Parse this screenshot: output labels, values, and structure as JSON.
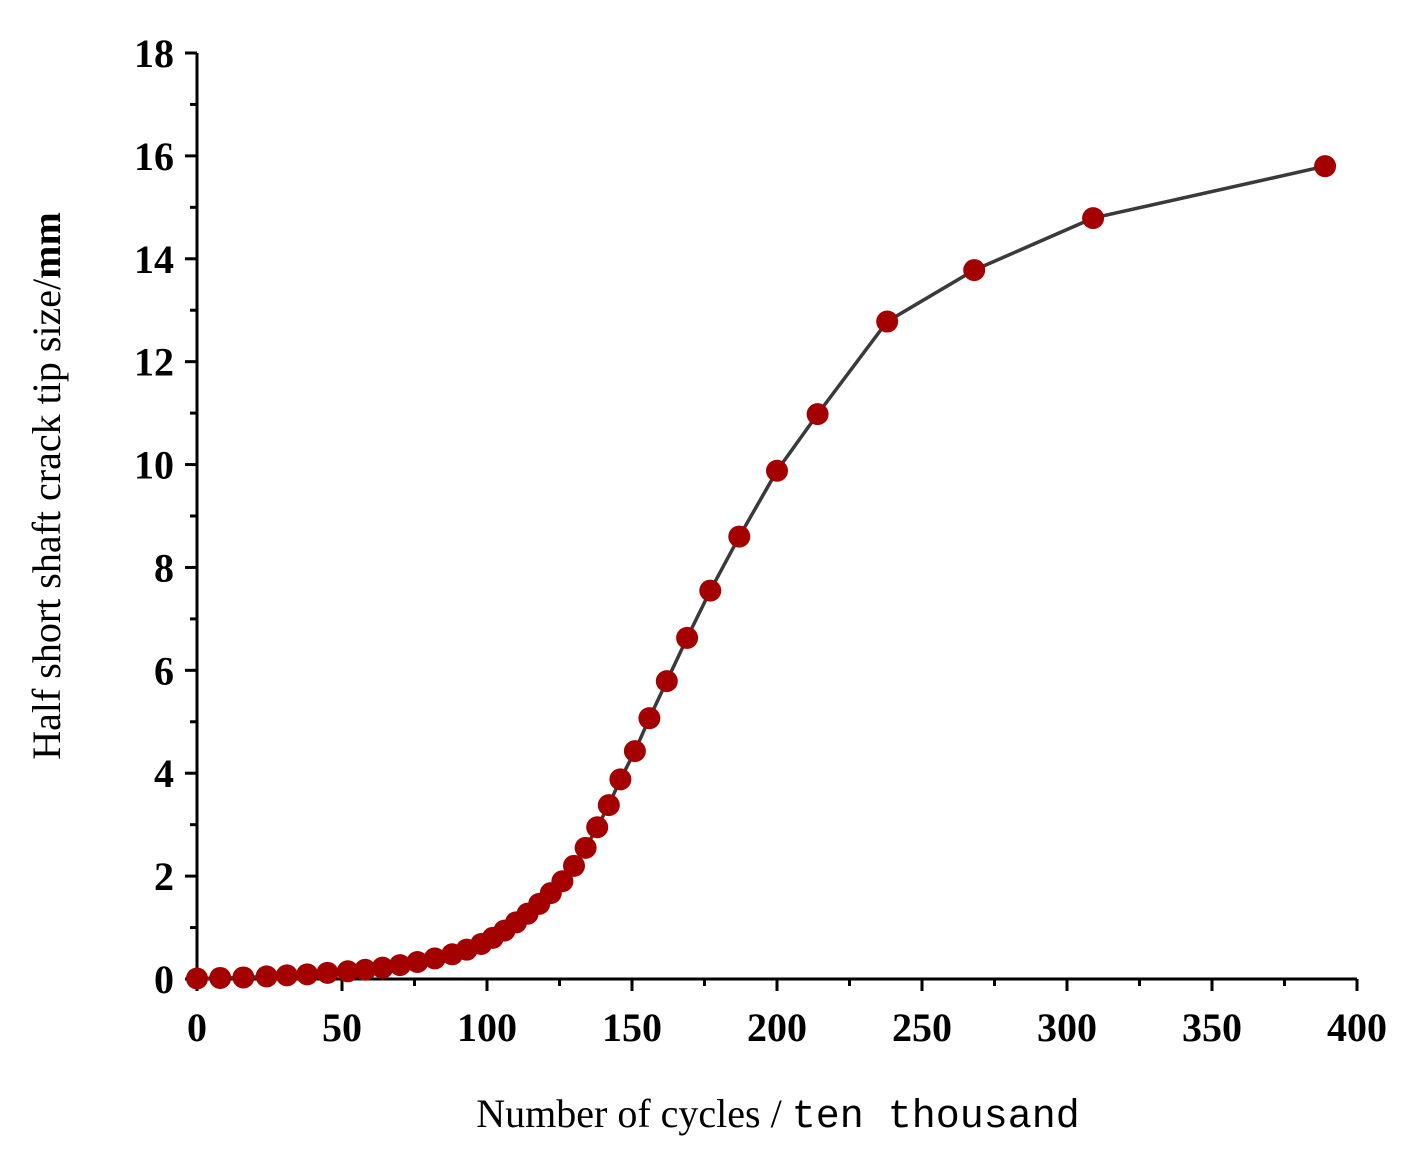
{
  "chart_data": {
    "type": "line",
    "title": "",
    "xlabel_main": "Number of cycles / ",
    "xlabel_unit": "ten thousand",
    "ylabel_main": "Half short shaft crack tip size/",
    "ylabel_unit": "mm",
    "xlim": [
      0,
      400
    ],
    "ylim": [
      0,
      18
    ],
    "x_ticks": [
      "0",
      "50",
      "100",
      "150",
      "200",
      "250",
      "300",
      "350",
      "400"
    ],
    "y_ticks": [
      "0",
      "2",
      "4",
      "6",
      "8",
      "10",
      "12",
      "14",
      "16",
      "18"
    ],
    "grid": false,
    "legend": "none",
    "colors": {
      "marker": "#a50000",
      "line": "#3a3a3a",
      "axis": "#000000"
    },
    "series": [
      {
        "x": [
          0,
          8,
          16,
          24,
          31,
          38,
          45,
          52,
          58,
          64,
          70,
          76,
          82,
          88,
          93,
          98,
          102,
          106,
          110,
          114,
          118,
          122,
          126,
          130,
          134,
          138,
          142,
          146,
          151,
          156,
          162,
          169,
          177,
          187,
          200,
          214,
          238,
          268,
          309,
          389
        ],
        "y": [
          0.01,
          0.02,
          0.03,
          0.05,
          0.07,
          0.09,
          0.12,
          0.15,
          0.18,
          0.22,
          0.27,
          0.33,
          0.4,
          0.48,
          0.57,
          0.68,
          0.8,
          0.94,
          1.1,
          1.27,
          1.46,
          1.67,
          1.9,
          2.2,
          2.55,
          2.95,
          3.38,
          3.88,
          4.43,
          5.07,
          5.79,
          6.63,
          7.55,
          8.6,
          9.88,
          10.98,
          12.78,
          13.78,
          14.79,
          15.8
        ]
      }
    ]
  }
}
